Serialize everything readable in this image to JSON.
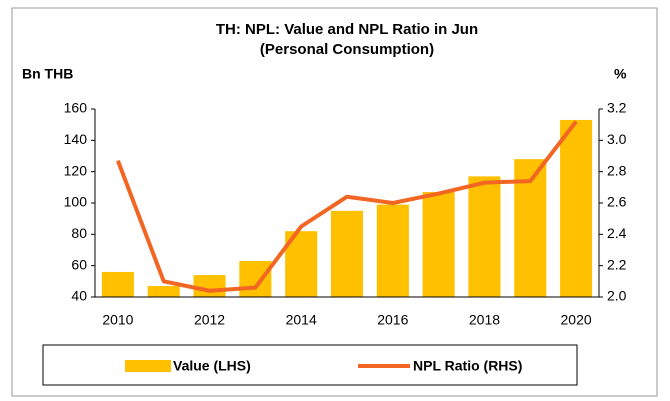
{
  "chart_data": {
    "type": "bar-line",
    "title": "TH: NPL: Value and NPL Ratio in Jun",
    "subtitle": "(Personal Consumption)",
    "y_label": "Bn THB",
    "y2_label": "%",
    "categories": [
      2010,
      null,
      2012,
      null,
      2014,
      null,
      2016,
      null,
      2018,
      null,
      2020
    ],
    "series": [
      {
        "name": "Value (LHS)",
        "color": "#ffc000",
        "kind": "bar",
        "axis": "y",
        "values": [
          56,
          47,
          54,
          63,
          82,
          95,
          99,
          107,
          117,
          128,
          153
        ]
      },
      {
        "name": "NPL Ratio (RHS)",
        "color": "#f26522",
        "kind": "line",
        "axis": "y2",
        "values": [
          2.87,
          2.1,
          2.04,
          2.06,
          2.45,
          2.64,
          2.6,
          2.66,
          2.73,
          2.74,
          3.12
        ]
      }
    ],
    "ylim": [
      40,
      160
    ],
    "yticks": [
      40,
      60,
      80,
      100,
      120,
      140,
      160
    ],
    "y2lim": [
      2.0,
      3.2
    ],
    "y2ticks": [
      {
        "value": 2.0,
        "label": "2.0"
      },
      {
        "value": 2.2,
        "label": "2.2"
      },
      {
        "value": 2.4,
        "label": "2.4"
      },
      {
        "value": 2.6,
        "label": "2.6"
      },
      {
        "value": 2.8,
        "label": "2.8"
      },
      {
        "value": 3.0,
        "label": "3.0"
      },
      {
        "value": 3.2,
        "label": "3.2"
      }
    ],
    "legend": "bottom"
  }
}
